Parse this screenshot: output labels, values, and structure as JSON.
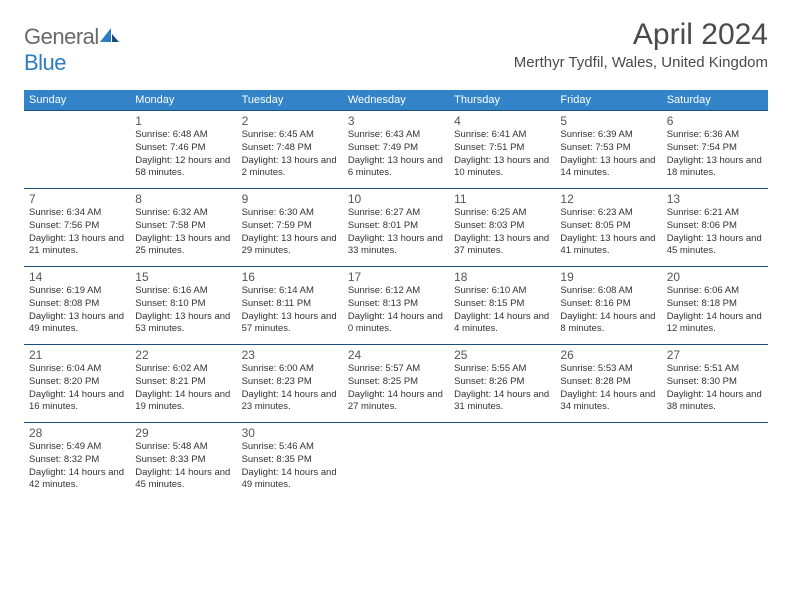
{
  "logo": {
    "text1": "General",
    "text2": "Blue"
  },
  "title": "April 2024",
  "location": "Merthyr Tydfil, Wales, United Kingdom",
  "colors": {
    "header_bg": "#3283c8",
    "header_text": "#ffffff",
    "border": "#1f4e79",
    "text": "#333333",
    "title": "#4a4a4a"
  },
  "day_names": [
    "Sunday",
    "Monday",
    "Tuesday",
    "Wednesday",
    "Thursday",
    "Friday",
    "Saturday"
  ],
  "weeks": [
    [
      null,
      {
        "n": "1",
        "sr": "6:48 AM",
        "ss": "7:46 PM",
        "dl": "12 hours and 58 minutes."
      },
      {
        "n": "2",
        "sr": "6:45 AM",
        "ss": "7:48 PM",
        "dl": "13 hours and 2 minutes."
      },
      {
        "n": "3",
        "sr": "6:43 AM",
        "ss": "7:49 PM",
        "dl": "13 hours and 6 minutes."
      },
      {
        "n": "4",
        "sr": "6:41 AM",
        "ss": "7:51 PM",
        "dl": "13 hours and 10 minutes."
      },
      {
        "n": "5",
        "sr": "6:39 AM",
        "ss": "7:53 PM",
        "dl": "13 hours and 14 minutes."
      },
      {
        "n": "6",
        "sr": "6:36 AM",
        "ss": "7:54 PM",
        "dl": "13 hours and 18 minutes."
      }
    ],
    [
      {
        "n": "7",
        "sr": "6:34 AM",
        "ss": "7:56 PM",
        "dl": "13 hours and 21 minutes."
      },
      {
        "n": "8",
        "sr": "6:32 AM",
        "ss": "7:58 PM",
        "dl": "13 hours and 25 minutes."
      },
      {
        "n": "9",
        "sr": "6:30 AM",
        "ss": "7:59 PM",
        "dl": "13 hours and 29 minutes."
      },
      {
        "n": "10",
        "sr": "6:27 AM",
        "ss": "8:01 PM",
        "dl": "13 hours and 33 minutes."
      },
      {
        "n": "11",
        "sr": "6:25 AM",
        "ss": "8:03 PM",
        "dl": "13 hours and 37 minutes."
      },
      {
        "n": "12",
        "sr": "6:23 AM",
        "ss": "8:05 PM",
        "dl": "13 hours and 41 minutes."
      },
      {
        "n": "13",
        "sr": "6:21 AM",
        "ss": "8:06 PM",
        "dl": "13 hours and 45 minutes."
      }
    ],
    [
      {
        "n": "14",
        "sr": "6:19 AM",
        "ss": "8:08 PM",
        "dl": "13 hours and 49 minutes."
      },
      {
        "n": "15",
        "sr": "6:16 AM",
        "ss": "8:10 PM",
        "dl": "13 hours and 53 minutes."
      },
      {
        "n": "16",
        "sr": "6:14 AM",
        "ss": "8:11 PM",
        "dl": "13 hours and 57 minutes."
      },
      {
        "n": "17",
        "sr": "6:12 AM",
        "ss": "8:13 PM",
        "dl": "14 hours and 0 minutes."
      },
      {
        "n": "18",
        "sr": "6:10 AM",
        "ss": "8:15 PM",
        "dl": "14 hours and 4 minutes."
      },
      {
        "n": "19",
        "sr": "6:08 AM",
        "ss": "8:16 PM",
        "dl": "14 hours and 8 minutes."
      },
      {
        "n": "20",
        "sr": "6:06 AM",
        "ss": "8:18 PM",
        "dl": "14 hours and 12 minutes."
      }
    ],
    [
      {
        "n": "21",
        "sr": "6:04 AM",
        "ss": "8:20 PM",
        "dl": "14 hours and 16 minutes."
      },
      {
        "n": "22",
        "sr": "6:02 AM",
        "ss": "8:21 PM",
        "dl": "14 hours and 19 minutes."
      },
      {
        "n": "23",
        "sr": "6:00 AM",
        "ss": "8:23 PM",
        "dl": "14 hours and 23 minutes."
      },
      {
        "n": "24",
        "sr": "5:57 AM",
        "ss": "8:25 PM",
        "dl": "14 hours and 27 minutes."
      },
      {
        "n": "25",
        "sr": "5:55 AM",
        "ss": "8:26 PM",
        "dl": "14 hours and 31 minutes."
      },
      {
        "n": "26",
        "sr": "5:53 AM",
        "ss": "8:28 PM",
        "dl": "14 hours and 34 minutes."
      },
      {
        "n": "27",
        "sr": "5:51 AM",
        "ss": "8:30 PM",
        "dl": "14 hours and 38 minutes."
      }
    ],
    [
      {
        "n": "28",
        "sr": "5:49 AM",
        "ss": "8:32 PM",
        "dl": "14 hours and 42 minutes."
      },
      {
        "n": "29",
        "sr": "5:48 AM",
        "ss": "8:33 PM",
        "dl": "14 hours and 45 minutes."
      },
      {
        "n": "30",
        "sr": "5:46 AM",
        "ss": "8:35 PM",
        "dl": "14 hours and 49 minutes."
      },
      null,
      null,
      null,
      null
    ]
  ]
}
